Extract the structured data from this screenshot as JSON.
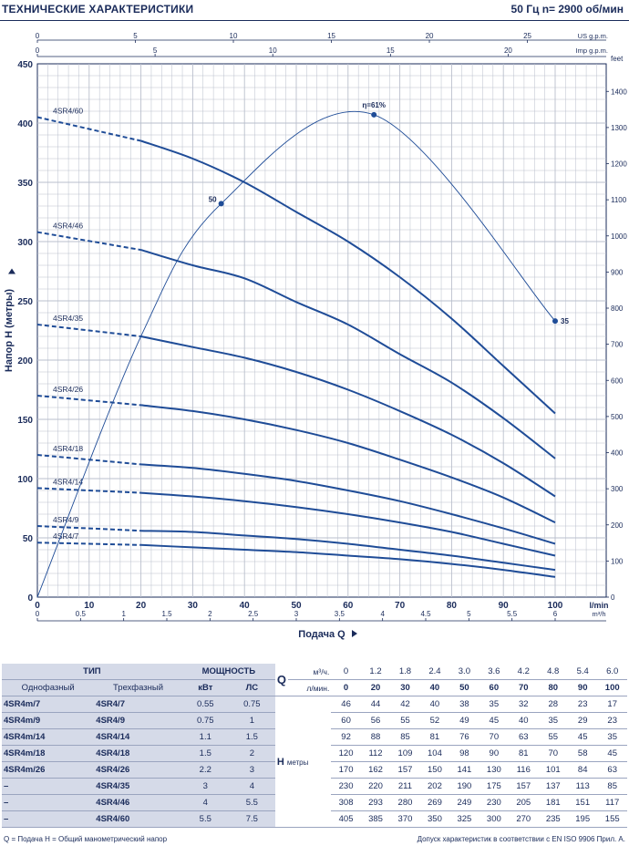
{
  "header": {
    "title": "ТЕХНИЧЕСКИЕ ХАРАКТЕРИСТИКИ",
    "freq_label": "50 Гц  n= 2900 об/мин"
  },
  "chart_data": {
    "type": "line",
    "x_unit_main": "l/min",
    "x_unit_m3h": "m³/h",
    "x_unit_us": "US g.p.m.",
    "x_unit_imp": "Imp g.p.m.",
    "ylabel": "Напор Н (метры)",
    "y2_unit": "feet",
    "xlabel": "Подача Q",
    "xlim": [
      0,
      100
    ],
    "ylim": [
      0,
      450
    ],
    "x_ticks": [
      0,
      10,
      20,
      30,
      40,
      50,
      60,
      70,
      80,
      90,
      100
    ],
    "y_ticks": [
      0,
      50,
      100,
      150,
      200,
      250,
      300,
      350,
      400,
      450
    ],
    "m3h_ticks": [
      "0",
      "0.5",
      "1",
      "1.5",
      "2",
      "2.5",
      "3",
      "3.5",
      "4",
      "4.5",
      "5",
      "5.5",
      "6"
    ],
    "us_ticks": [
      "0",
      "5",
      "10",
      "15",
      "20",
      "25"
    ],
    "imp_ticks": [
      "0",
      "5",
      "10",
      "15",
      "20"
    ],
    "feet_ticks": [
      "0",
      "100",
      "200",
      "300",
      "400",
      "500",
      "600",
      "700",
      "800",
      "900",
      "1000",
      "1100",
      "1200",
      "1300",
      "1400"
    ],
    "x": [
      0,
      20,
      30,
      40,
      50,
      60,
      70,
      80,
      90,
      100
    ],
    "series": [
      {
        "name": "4SR4/60",
        "values": [
          405,
          385,
          370,
          350,
          325,
          300,
          270,
          235,
          195,
          155
        ]
      },
      {
        "name": "4SR4/46",
        "values": [
          308,
          293,
          280,
          269,
          249,
          230,
          205,
          181,
          151,
          117
        ]
      },
      {
        "name": "4SR4/35",
        "values": [
          230,
          220,
          211,
          202,
          190,
          175,
          157,
          137,
          113,
          85
        ]
      },
      {
        "name": "4SR4/26",
        "values": [
          170,
          162,
          157,
          150,
          141,
          130,
          116,
          101,
          84,
          63
        ]
      },
      {
        "name": "4SR4/18",
        "values": [
          120,
          112,
          109,
          104,
          98,
          90,
          81,
          70,
          58,
          45
        ]
      },
      {
        "name": "4SR4/14",
        "values": [
          92,
          88,
          85,
          81,
          76,
          70,
          63,
          55,
          45,
          35
        ]
      },
      {
        "name": "4SR4/9",
        "values": [
          60,
          56,
          55,
          52,
          49,
          45,
          40,
          35,
          29,
          23
        ]
      },
      {
        "name": "4SR4/7",
        "values": [
          46,
          44,
          42,
          40,
          38,
          35,
          32,
          28,
          23,
          17
        ]
      }
    ],
    "efficiency": {
      "points": [
        [
          0,
          0
        ],
        [
          20,
          220
        ],
        [
          35.5,
          332
        ],
        [
          65,
          407
        ],
        [
          100,
          233
        ]
      ],
      "markers": [
        {
          "x": 35.5,
          "y": 332,
          "label": "50"
        },
        {
          "x": 65,
          "y": 407,
          "label": "η=61%"
        },
        {
          "x": 100,
          "y": 233,
          "label": "35"
        }
      ]
    },
    "grid": true
  },
  "table": {
    "h_type": "ТИП",
    "h_power": "МОЩНОСТЬ",
    "h_q": "Q",
    "h_h": "H",
    "h_h_unit": "метры",
    "u_m3h": "м³/ч.",
    "u_lmin": "л/мин.",
    "h_single": "Однофазный",
    "h_three": "Трехфазный",
    "h_kw": "кВт",
    "h_hp": "ЛС",
    "q_m3h": [
      "0",
      "1.2",
      "1.8",
      "2.4",
      "3.0",
      "3.6",
      "4.2",
      "4.8",
      "5.4",
      "6.0"
    ],
    "q_lmin": [
      "0",
      "20",
      "30",
      "40",
      "50",
      "60",
      "70",
      "80",
      "90",
      "100"
    ],
    "rows": [
      {
        "single": "4SR4m/7",
        "three": "4SR4/7",
        "kw": "0.55",
        "hp": "0.75",
        "h": [
          "46",
          "44",
          "42",
          "40",
          "38",
          "35",
          "32",
          "28",
          "23",
          "17"
        ]
      },
      {
        "single": "4SR4m/9",
        "three": "4SR4/9",
        "kw": "0.75",
        "hp": "1",
        "h": [
          "60",
          "56",
          "55",
          "52",
          "49",
          "45",
          "40",
          "35",
          "29",
          "23"
        ]
      },
      {
        "single": "4SR4m/14",
        "three": "4SR4/14",
        "kw": "1.1",
        "hp": "1.5",
        "h": [
          "92",
          "88",
          "85",
          "81",
          "76",
          "70",
          "63",
          "55",
          "45",
          "35"
        ]
      },
      {
        "single": "4SR4m/18",
        "three": "4SR4/18",
        "kw": "1.5",
        "hp": "2",
        "h": [
          "120",
          "112",
          "109",
          "104",
          "98",
          "90",
          "81",
          "70",
          "58",
          "45"
        ]
      },
      {
        "single": "4SR4m/26",
        "three": "4SR4/26",
        "kw": "2.2",
        "hp": "3",
        "h": [
          "170",
          "162",
          "157",
          "150",
          "141",
          "130",
          "116",
          "101",
          "84",
          "63"
        ]
      },
      {
        "single": "–",
        "three": "4SR4/35",
        "kw": "3",
        "hp": "4",
        "h": [
          "230",
          "220",
          "211",
          "202",
          "190",
          "175",
          "157",
          "137",
          "113",
          "85"
        ]
      },
      {
        "single": "–",
        "three": "4SR4/46",
        "kw": "4",
        "hp": "5.5",
        "h": [
          "308",
          "293",
          "280",
          "269",
          "249",
          "230",
          "205",
          "181",
          "151",
          "117"
        ]
      },
      {
        "single": "–",
        "three": "4SR4/60",
        "kw": "5.5",
        "hp": "7.5",
        "h": [
          "405",
          "385",
          "370",
          "350",
          "325",
          "300",
          "270",
          "235",
          "195",
          "155"
        ]
      }
    ]
  },
  "footer": {
    "left": "Q = Подача   H = Общий манометрический напор",
    "right": "Допуск характеристик в соответствии с EN ISO 9906 Прил. А."
  },
  "colors": {
    "curve": "#1f4c97",
    "grid": "#b9bfcc",
    "text": "#1a2b5a",
    "shade": "#d5dae8"
  }
}
